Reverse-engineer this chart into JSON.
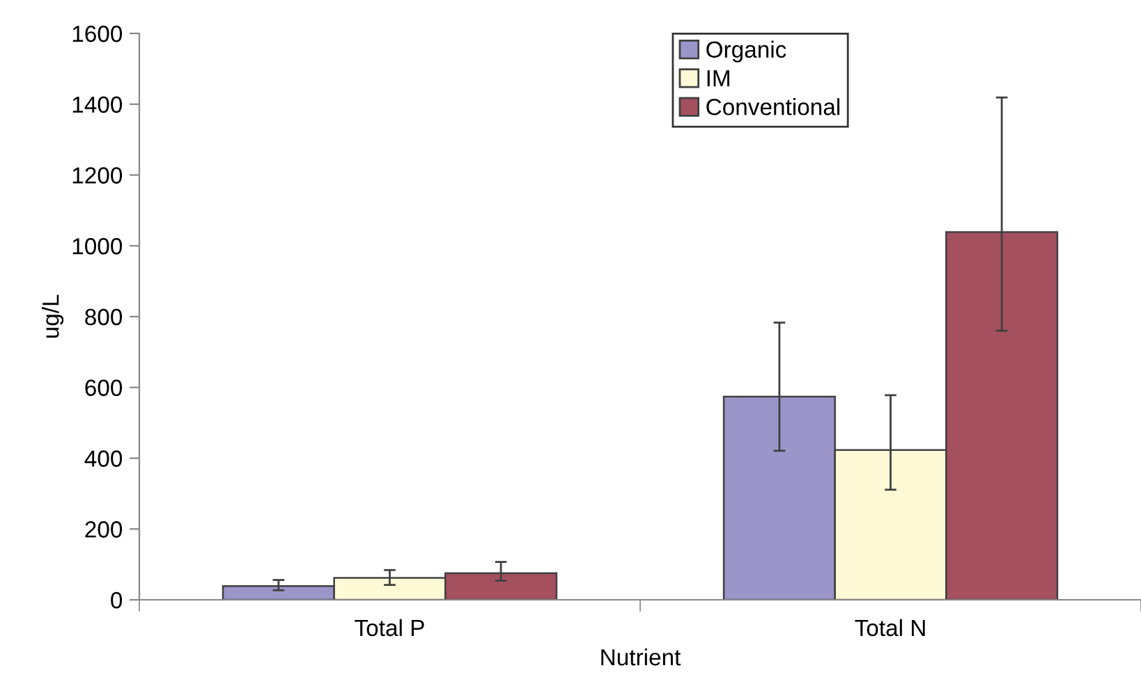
{
  "chart_data": {
    "type": "bar",
    "xlabel": "Nutrient",
    "ylabel": "ug/L",
    "categories": [
      "Total P",
      "Total N"
    ],
    "series": [
      {
        "name": "Organic",
        "color": "#9b95c9",
        "values": [
          39,
          574
        ],
        "errors": [
          [
            27,
            56
          ],
          [
            421,
            783
          ]
        ]
      },
      {
        "name": "IM",
        "color": "#fffad6",
        "values": [
          62,
          423
        ],
        "errors": [
          [
            42,
            84
          ],
          [
            311,
            578
          ]
        ]
      },
      {
        "name": "Conventional",
        "color": "#a5505f",
        "values": [
          75,
          1039
        ],
        "errors": [
          [
            54,
            107
          ],
          [
            760,
            1419
          ]
        ]
      }
    ],
    "ylim": [
      0,
      1600
    ],
    "yticks": [
      0,
      200,
      400,
      600,
      800,
      1000,
      1200,
      1400,
      1600
    ],
    "grid": false,
    "legend": "top"
  }
}
